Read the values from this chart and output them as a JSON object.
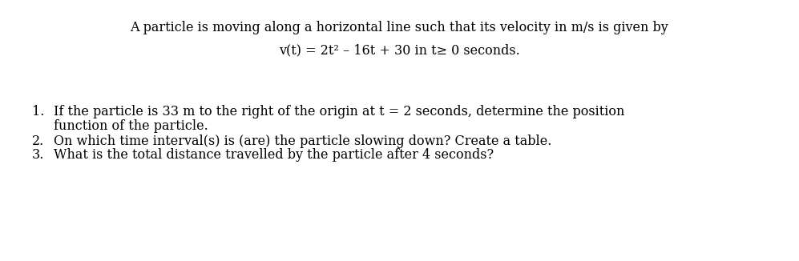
{
  "background_color": "#ffffff",
  "line1": "A particle is moving along a horizontal line such that its velocity in m/s is given by",
  "line2_plain": "v(t) = 2t² – 16t + 30 in t≥ 0 seconds.",
  "item1_line1": "If the particle is 33 m to the right of the origin at t = 2 seconds, determine the position",
  "item1_line2": "function of the particle.",
  "item2": "On which time interval(s) is (are) the particle slowing down? Create a table.",
  "item3": "What is the total distance travelled by the particle after 4 seconds?",
  "text_color": "#000000",
  "font_size_header": 11.5,
  "font_size_body": 11.5,
  "font_family": "DejaVu Serif"
}
